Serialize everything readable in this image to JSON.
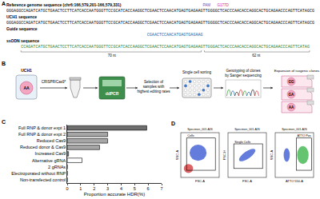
{
  "panel_a": {
    "label": "A",
    "reference_title": "Reference genome sequence (chr6:166,579,201-166,579,331)",
    "pam_label": "PAM",
    "mutation_label": "G177D",
    "reference_sequence": "GGGAGGCCAGATCATGCTGAACTCCTTCATCACCAATGGGTTCCGCATCACCAAGGCTCGAACTCCAACATGAGTGAGAAGTTGGGGCTCACCCAACACCAGGCACTGCAGAACCCAGTTCATAGCG",
    "uch1_title": "UCH1 sequence",
    "uch1_sequence": "GGGAGGCCAGATCATGCTGAACTCCTTCATCACCAATGGGTTCCGCATCACCAAGGCTCGAACTCCAACATGAGTGAGAAGTTGGGGCTCACCCAACACCAGGCACTGCAGAACCCAGTTCATAGCG",
    "guide_title": "Guide sequence",
    "guide_sequence": "CGAACTCCAACATGAGTGAGAAG",
    "ssodn_title": "ssODN sequence",
    "ssodn_sequence": "CCAGATCATGCTGAACTCCTTCATCACCAATGGGTTCCGCATCACCAAGGCTCGAACTCCAACATGAGTGAGAAGTTGGGACTCACCCAACACCAGGCACTGCAGAACCCAGTTCATAG",
    "left_arm": "70 nt",
    "right_arm": "62 nt"
  },
  "panel_b": {
    "label": "B",
    "cell_line": "UCH1",
    "genotype": "AA",
    "step1": "CRISPR/Cas9*",
    "step2": "ddPCR",
    "step3": "Selection of samples with highest editing rates",
    "step4": "Single cell sorting",
    "step5": "Genotyping of clones by Sanger sequencing",
    "step6": "Expansion of isogenic clones",
    "clones": [
      "GG",
      "GA",
      "AA"
    ]
  },
  "chart_data": {
    "type": "bar",
    "orientation": "horizontal",
    "label": "C",
    "categories": [
      "Full RNP & donor expt 1",
      "Full RNP & donor expt 2",
      "Reduced Cas9",
      "Reduced donor & Cas9",
      "Increased Cas9",
      "Alternative gRNA",
      "2 gRNAs",
      "Electroporated without RNP",
      "Non-transfected control"
    ],
    "values": [
      5.9,
      3.0,
      3.0,
      2.4,
      0.1,
      1.1,
      0,
      0,
      0
    ],
    "colors": [
      "#6e6e6e",
      "#a6a6a6",
      "#a6a6a6",
      "#a6a6a6",
      "#a6a6a6",
      "#ffffff",
      "#a6a6a6",
      "#a6a6a6",
      "#a6a6a6"
    ],
    "x_label": "Proportion accurate HDR(%)",
    "xlim": [
      0,
      7
    ],
    "xticks": [
      0,
      1,
      2,
      3,
      4,
      5,
      6,
      7
    ],
    "grid": false
  },
  "panel_d": {
    "label": "D",
    "plots": [
      {
        "title": "Specimen_001-A26",
        "x_label": "FSC-A",
        "y_label": "SSC-A",
        "gate": "Cells"
      },
      {
        "title": "Specimen_001-A26",
        "x_label": "FSC-A",
        "y_label": "FSC-H",
        "gate": "Single Cells"
      },
      {
        "title": "Specimen_001-A26",
        "x_label": "ATTO 550-A",
        "y_label": "SSC-A",
        "gate": "ATTO Pos"
      }
    ]
  }
}
